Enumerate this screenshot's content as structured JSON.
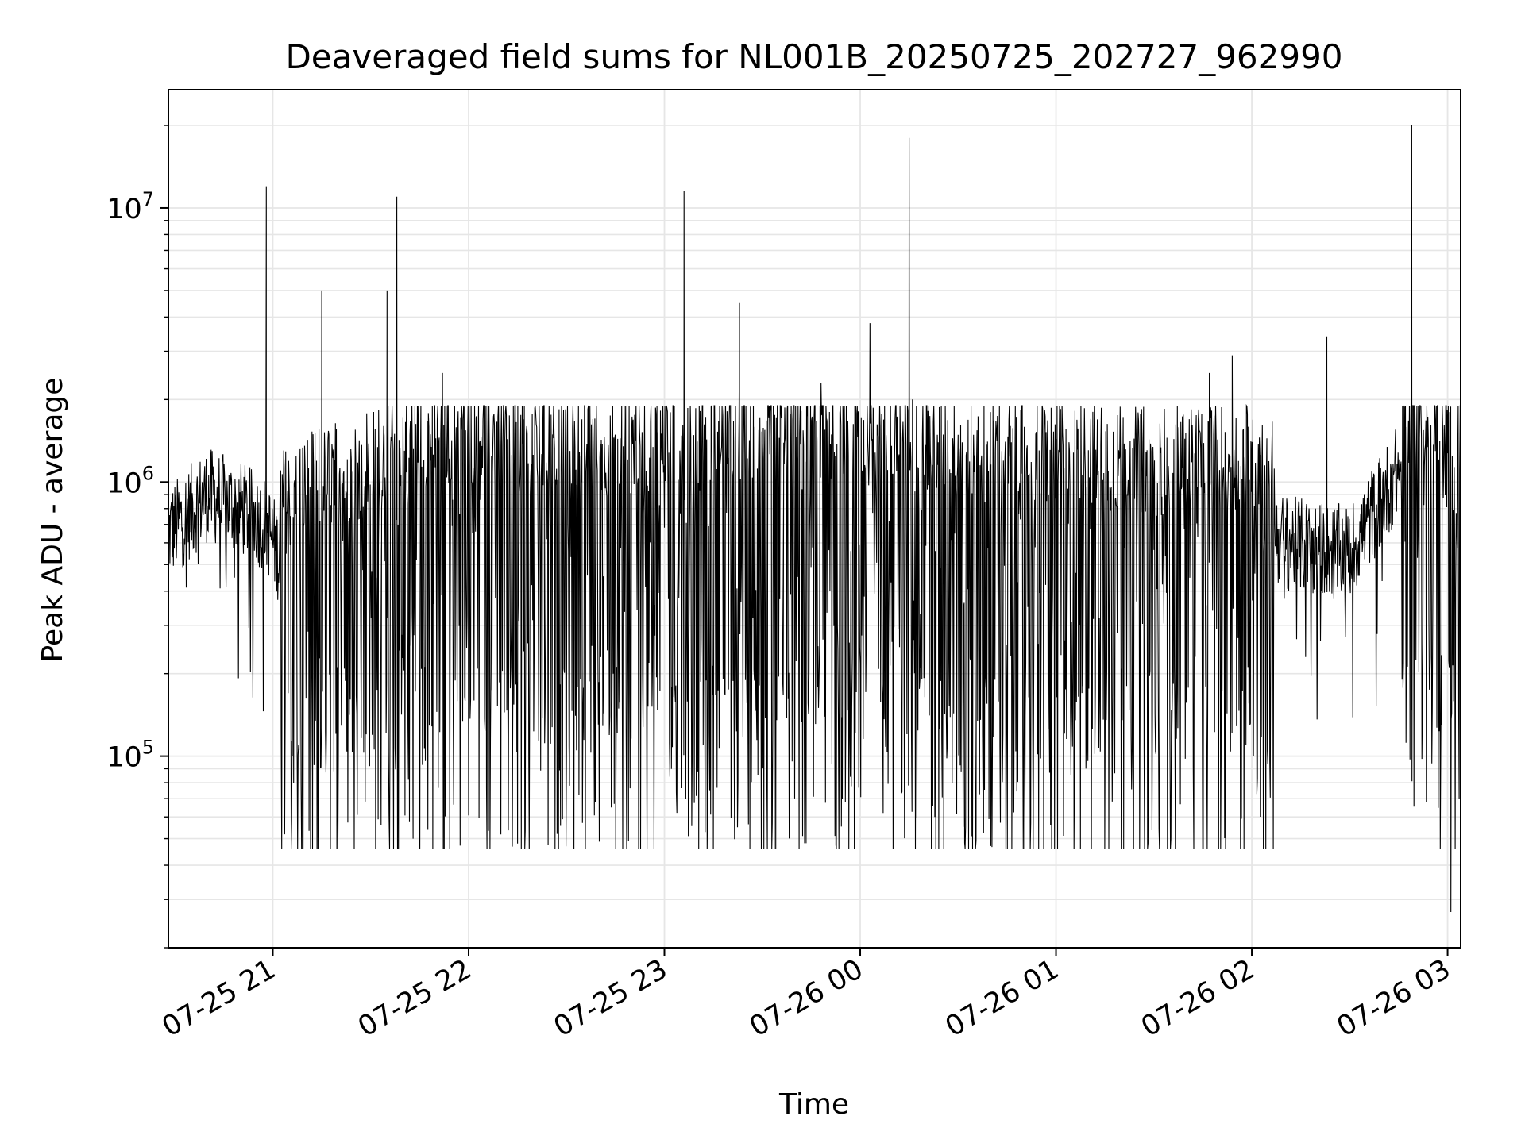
{
  "chart_data": {
    "type": "line",
    "title": "Deaveraged field sums for NL001B_20250725_202727_962990",
    "xlabel": "Time",
    "ylabel": "Peak ADU - average",
    "yscale": "log",
    "ylim": [
      20000,
      27000000
    ],
    "xlim": [
      "2025-07-25 20:28",
      "2025-07-26 03:04"
    ],
    "grid": true,
    "line_color": "#000000",
    "grid_color": "#e6e6e6",
    "y_ticks": [
      {
        "base": "10",
        "exp": "5",
        "value": 100000
      },
      {
        "base": "10",
        "exp": "6",
        "value": 1000000
      },
      {
        "base": "10",
        "exp": "7",
        "value": 10000000
      }
    ],
    "x_ticks": [
      {
        "label": "07-25 21",
        "t": "2025-07-25 21:00"
      },
      {
        "label": "07-25 22",
        "t": "2025-07-25 22:00"
      },
      {
        "label": "07-25 23",
        "t": "2025-07-25 23:00"
      },
      {
        "label": "07-26 00",
        "t": "2025-07-26 00:00"
      },
      {
        "label": "07-26 01",
        "t": "2025-07-26 01:00"
      },
      {
        "label": "07-26 02",
        "t": "2025-07-26 02:00"
      },
      {
        "label": "07-26 03",
        "t": "2025-07-26 03:00"
      }
    ],
    "series": [
      {
        "x": [
          "2025-07-25 20:28",
          "2025-07-25 20:40",
          "2025-07-25 20:50",
          "2025-07-25 20:58",
          "2025-07-25 21:03",
          "2025-07-25 21:15",
          "2025-07-25 21:30",
          "2025-07-25 21:45",
          "2025-07-25 22:00",
          "2025-07-25 22:30",
          "2025-07-25 23:00",
          "2025-07-25 23:30",
          "2025-07-25 23:50",
          "2025-07-26 00:00",
          "2025-07-26 00:30",
          "2025-07-26 01:00",
          "2025-07-26 01:30",
          "2025-07-26 02:00",
          "2025-07-26 02:10",
          "2025-07-26 02:30",
          "2025-07-26 02:45",
          "2025-07-26 03:04"
        ],
        "y": [
          650000,
          900000,
          800000,
          700000,
          500000,
          600000,
          700000,
          900000,
          900000,
          800000,
          850000,
          900000,
          1100000,
          900000,
          800000,
          750000,
          700000,
          750000,
          600000,
          550000,
          1100000,
          900000
        ]
      }
    ],
    "spikes": [
      {
        "t": "2025-07-25 20:58",
        "y": 12000000
      },
      {
        "t": "2025-07-25 21:15",
        "y": 5000000
      },
      {
        "t": "2025-07-25 21:35",
        "y": 5000000
      },
      {
        "t": "2025-07-25 21:38",
        "y": 11000000
      },
      {
        "t": "2025-07-25 21:52",
        "y": 2500000
      },
      {
        "t": "2025-07-25 23:06",
        "y": 11500000
      },
      {
        "t": "2025-07-25 23:23",
        "y": 4500000
      },
      {
        "t": "2025-07-25 23:48",
        "y": 2300000
      },
      {
        "t": "2025-07-26 00:03",
        "y": 3800000
      },
      {
        "t": "2025-07-26 00:15",
        "y": 18000000
      },
      {
        "t": "2025-07-26 00:16",
        "y": 2000000
      },
      {
        "t": "2025-07-26 01:47",
        "y": 2500000
      },
      {
        "t": "2025-07-26 01:54",
        "y": 2900000
      },
      {
        "t": "2025-07-26 02:23",
        "y": 3400000
      },
      {
        "t": "2025-07-26 02:49",
        "y": 20000000
      }
    ],
    "dips": [
      {
        "t": "2025-07-25 21:06",
        "y": 100000
      },
      {
        "t": "2025-07-25 21:43",
        "y": 50000
      },
      {
        "t": "2025-07-25 22:15",
        "y": 48000
      },
      {
        "t": "2025-07-25 22:49",
        "y": 49000
      },
      {
        "t": "2025-07-25 23:15",
        "y": 46000
      },
      {
        "t": "2025-07-26 00:40",
        "y": 47000
      },
      {
        "t": "2025-07-26 01:20",
        "y": 46000
      },
      {
        "t": "2025-07-26 03:01",
        "y": 27000
      }
    ]
  }
}
